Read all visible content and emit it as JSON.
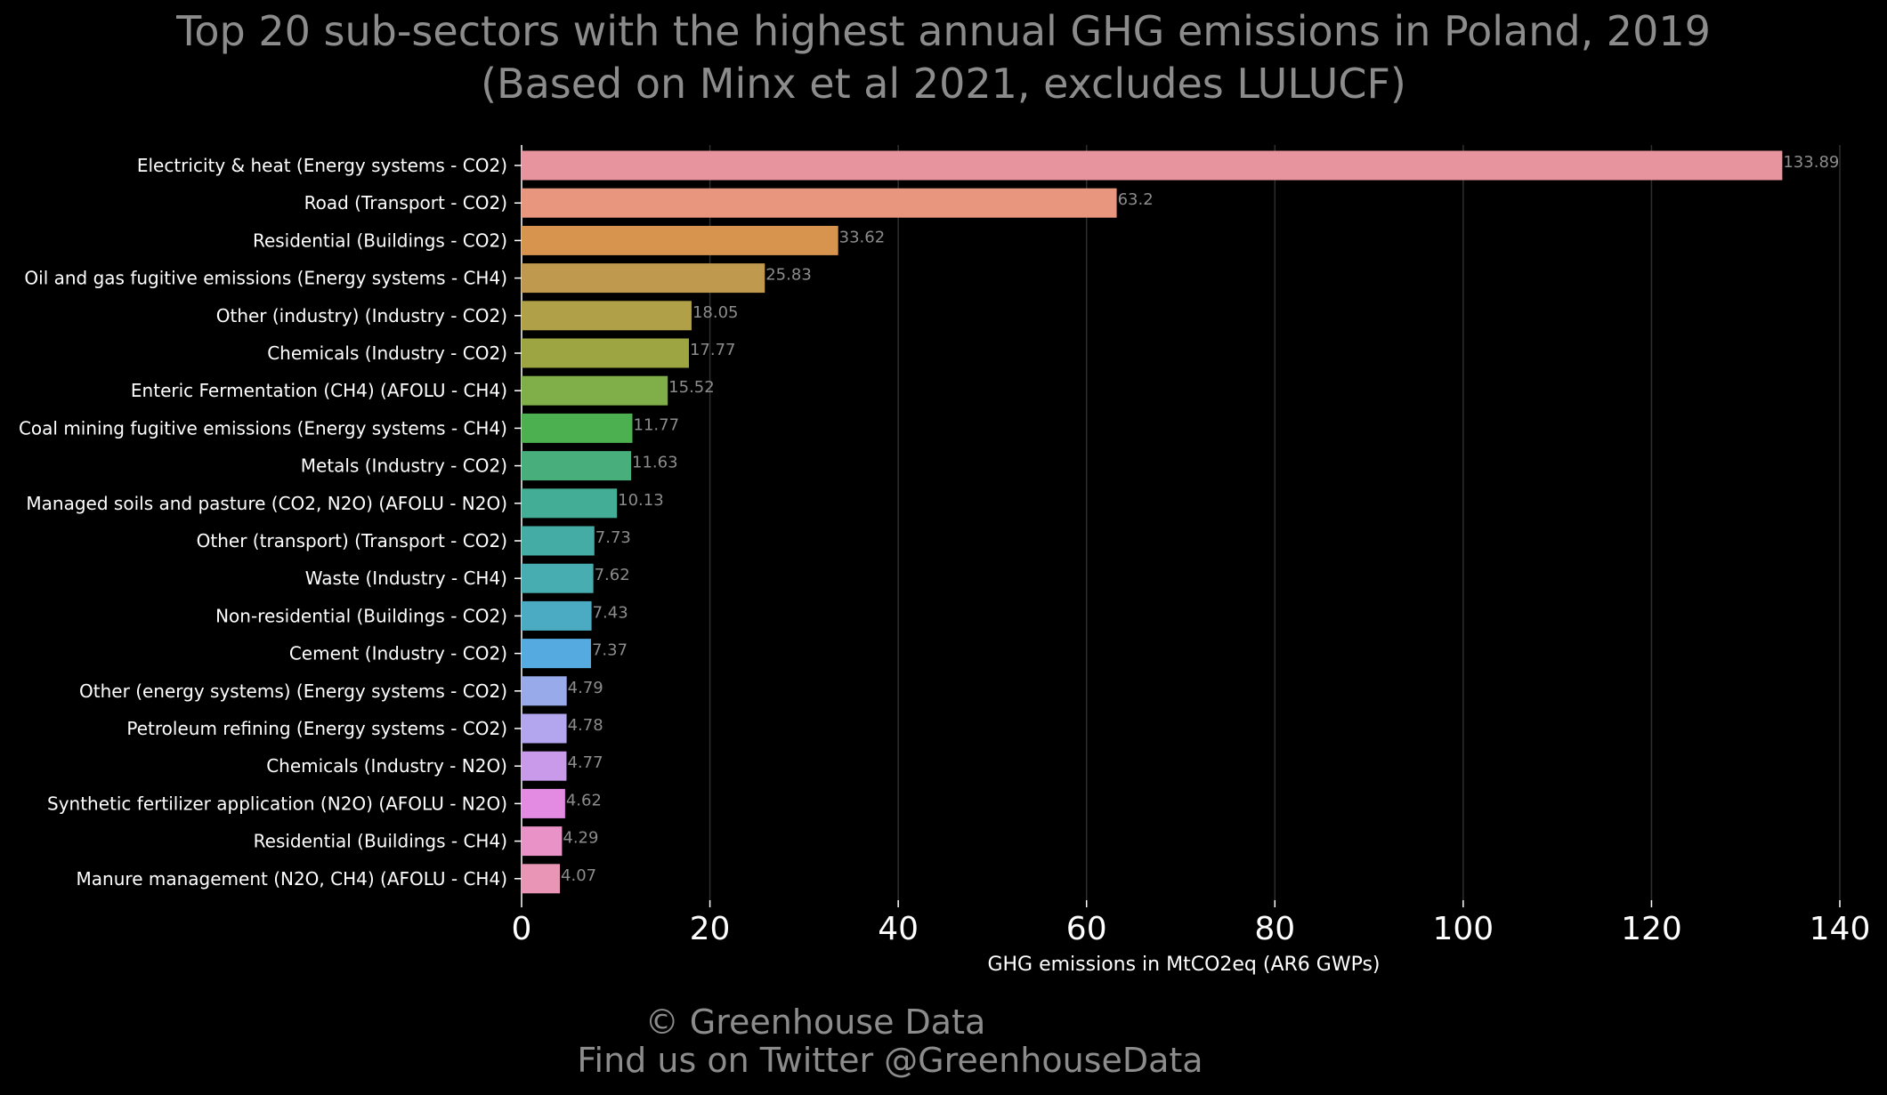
{
  "chart_data": {
    "type": "bar",
    "orientation": "horizontal",
    "title": "Top 20 sub-sectors with the highest annual GHG emissions in Poland, 2019",
    "subtitle": "(Based on Minx et al 2021, excludes LULUCF)",
    "xlabel": "GHG emissions in MtCO2eq (AR6 GWPs)",
    "ylabel": "",
    "xlim": [
      0,
      140
    ],
    "xticks": [
      "0",
      "20",
      "40",
      "60",
      "80",
      "100",
      "120",
      "140"
    ],
    "grid": "vertical",
    "legend": "none",
    "categories": [
      "Electricity & heat (Energy systems - CO2)",
      "Road (Transport - CO2)",
      "Residential (Buildings - CO2)",
      "Oil and gas fugitive emissions (Energy systems - CH4)",
      "Other (industry) (Industry - CO2)",
      "Chemicals (Industry - CO2)",
      "Enteric Fermentation (CH4) (AFOLU - CH4)",
      "Coal mining fugitive emissions (Energy systems - CH4)",
      "Metals (Industry - CO2)",
      "Managed soils and pasture (CO2, N2O) (AFOLU - N2O)",
      "Other (transport) (Transport - CO2)",
      "Waste (Industry - CH4)",
      "Non-residential (Buildings - CO2)",
      "Cement (Industry - CO2)",
      "Other (energy systems) (Energy systems - CO2)",
      "Petroleum refining (Energy systems - CO2)",
      "Chemicals (Industry - N2O)",
      "Synthetic fertilizer application (N2O) (AFOLU - N2O)",
      "Residential (Buildings - CH4)",
      "Manure management (N2O, CH4) (AFOLU - CH4)"
    ],
    "values": [
      133.89,
      63.2,
      33.62,
      25.83,
      18.05,
      17.77,
      15.52,
      11.77,
      11.63,
      10.13,
      7.73,
      7.62,
      7.43,
      7.37,
      4.79,
      4.78,
      4.77,
      4.62,
      4.29,
      4.07
    ],
    "value_labels": [
      "133.89",
      "63.2",
      "33.62",
      "25.83",
      "18.05",
      "17.77",
      "15.52",
      "11.77",
      "11.63",
      "10.13",
      "7.73",
      "7.62",
      "7.43",
      "7.37",
      "4.79",
      "4.78",
      "4.77",
      "4.62",
      "4.29",
      "4.07"
    ],
    "colors": [
      "#e8949e",
      "#e8967e",
      "#d6944e",
      "#bf9a4e",
      "#b0a048",
      "#9ca542",
      "#80ae48",
      "#4caf50",
      "#47ae7c",
      "#44ad95",
      "#45aba5",
      "#48adb0",
      "#4aabc2",
      "#55abe0",
      "#99aaea",
      "#b3a6ee",
      "#c99aea",
      "#e38ae2",
      "#e892c8",
      "#e996b6"
    ]
  },
  "footer": {
    "copyright": "© Greenhouse Data",
    "twitter": "Find us on Twitter @GreenhouseData"
  },
  "theme": {
    "background": "#000000",
    "title_color": "#8c8c8c",
    "label_color": "#ffffff",
    "grid_color": "#2e2e2e"
  }
}
